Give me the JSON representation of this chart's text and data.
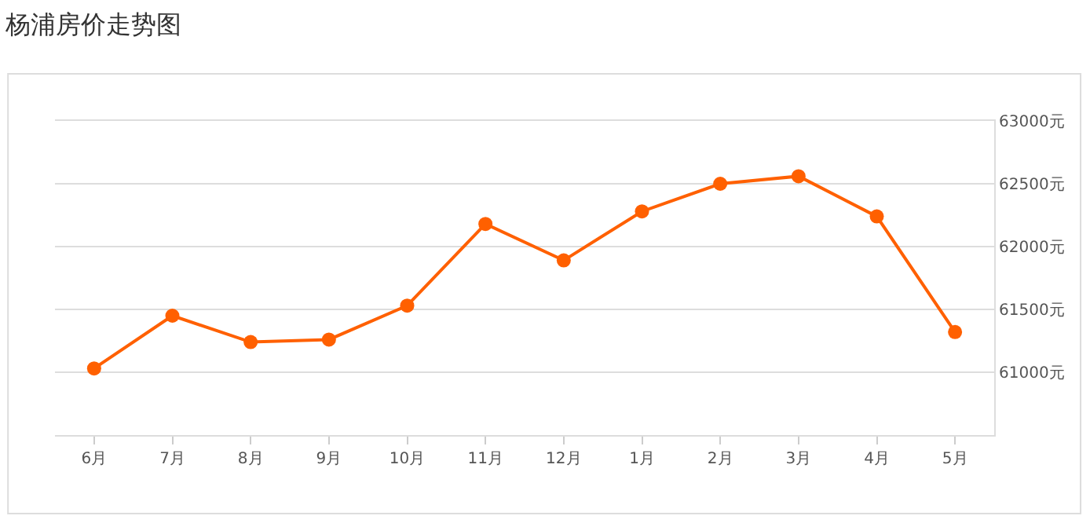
{
  "chart_data": {
    "type": "line",
    "title": "杨浦房价走势图",
    "categories": [
      "6月",
      "7月",
      "8月",
      "9月",
      "10月",
      "11月",
      "12月",
      "1月",
      "2月",
      "3月",
      "4月",
      "5月"
    ],
    "series": [
      {
        "color": "#ff6000",
        "values": [
          61030,
          61450,
          61240,
          61260,
          61530,
          62180,
          61890,
          62280,
          62500,
          62560,
          62240,
          61320
        ]
      }
    ],
    "ylim": [
      60500,
      63000
    ],
    "yticks": [
      {
        "value": 61000,
        "label": "61000元"
      },
      {
        "value": 61500,
        "label": "61500元"
      },
      {
        "value": 62000,
        "label": "62000元"
      },
      {
        "value": 62500,
        "label": "62500元"
      },
      {
        "value": 63000,
        "label": "63000元"
      }
    ],
    "grid": "y",
    "marker": "circle",
    "line_style": "solid"
  }
}
